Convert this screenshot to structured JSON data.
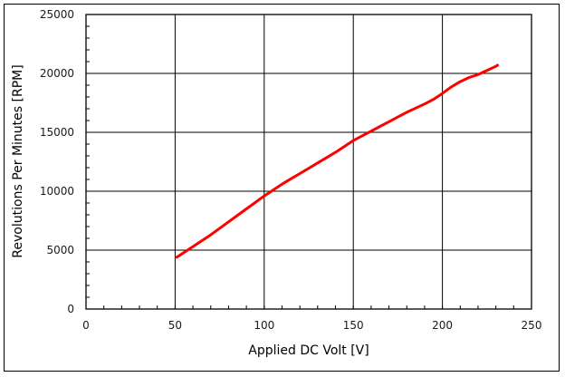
{
  "chart_data": {
    "type": "line",
    "title": "",
    "xlabel": "Applied DC Volt [V]",
    "ylabel": "Revolutions Per Minutes [RPM]",
    "xlim": [
      0,
      250
    ],
    "ylim": [
      0,
      25000
    ],
    "x_ticks": [
      0,
      50,
      100,
      150,
      200,
      250
    ],
    "y_ticks": [
      0,
      5000,
      10000,
      15000,
      20000,
      25000
    ],
    "x_tick_labels": [
      "0",
      "50",
      "100",
      "150",
      "200",
      "250"
    ],
    "y_tick_labels": [
      "0",
      "5000",
      "10000",
      "15000",
      "20000",
      "25000"
    ],
    "x_minor_step": 10,
    "y_minor_step": 1000,
    "grid": true,
    "legend": null,
    "series": [
      {
        "name": "RPM",
        "color": "#ff0000",
        "x": [
          51,
          55,
          60,
          65,
          70,
          75,
          80,
          85,
          90,
          95,
          100,
          105,
          110,
          115,
          120,
          125,
          130,
          135,
          140,
          145,
          150,
          155,
          160,
          165,
          170,
          175,
          180,
          185,
          190,
          195,
          200,
          205,
          210,
          215,
          220,
          225,
          230,
          231
        ],
        "y": [
          4400,
          4800,
          5300,
          5800,
          6300,
          6850,
          7400,
          7950,
          8500,
          9050,
          9600,
          10100,
          10600,
          11050,
          11500,
          11950,
          12400,
          12850,
          13300,
          13800,
          14300,
          14700,
          15100,
          15500,
          15900,
          16300,
          16700,
          17050,
          17400,
          17800,
          18300,
          18850,
          19300,
          19650,
          19900,
          20250,
          20600,
          20700
        ]
      }
    ]
  }
}
